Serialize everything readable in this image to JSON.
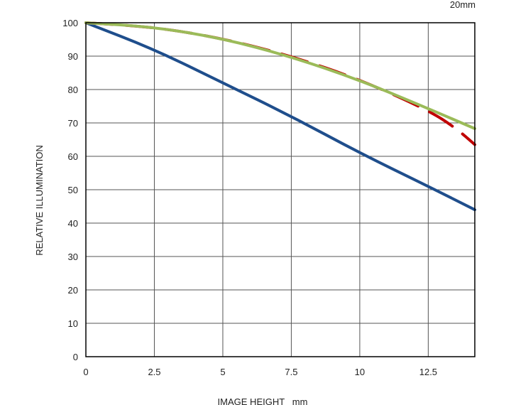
{
  "chart_data": {
    "type": "line",
    "title": "20mm",
    "xlabel": "IMAGE HEIGHT   mm",
    "ylabel": "RELATIVE ILLUMINATION",
    "xlim": [
      0,
      14.2
    ],
    "ylim": [
      0,
      100
    ],
    "xticks": [
      0,
      2.5,
      5,
      7.5,
      10,
      12.5
    ],
    "xtick_labels": [
      "0",
      "2.5",
      "5",
      "7.5",
      "10",
      "12.5"
    ],
    "yticks": [
      0,
      10,
      20,
      30,
      40,
      50,
      60,
      70,
      80,
      90,
      100
    ],
    "grid": true,
    "series": [
      {
        "color": "#1f4e8c",
        "style": "solid",
        "x": [
          0,
          2.5,
          5,
          7.5,
          10,
          12.5,
          14.2
        ],
        "y": [
          100,
          92,
          82,
          72,
          61,
          51,
          44
        ]
      },
      {
        "color": "#c00000",
        "style": "dashed",
        "x": [
          0,
          2.5,
          5,
          7.5,
          10,
          12.5,
          13.5,
          14.2
        ],
        "y": [
          100,
          98.7,
          95.3,
          90,
          83,
          73.8,
          68.5,
          63.5
        ]
      },
      {
        "color": "#9bbb59",
        "style": "solid",
        "x": [
          0,
          2.5,
          5,
          7.5,
          10,
          12.5,
          14.2
        ],
        "y": [
          100,
          98.7,
          95.3,
          89.8,
          82.8,
          74.3,
          68.3
        ]
      }
    ]
  }
}
